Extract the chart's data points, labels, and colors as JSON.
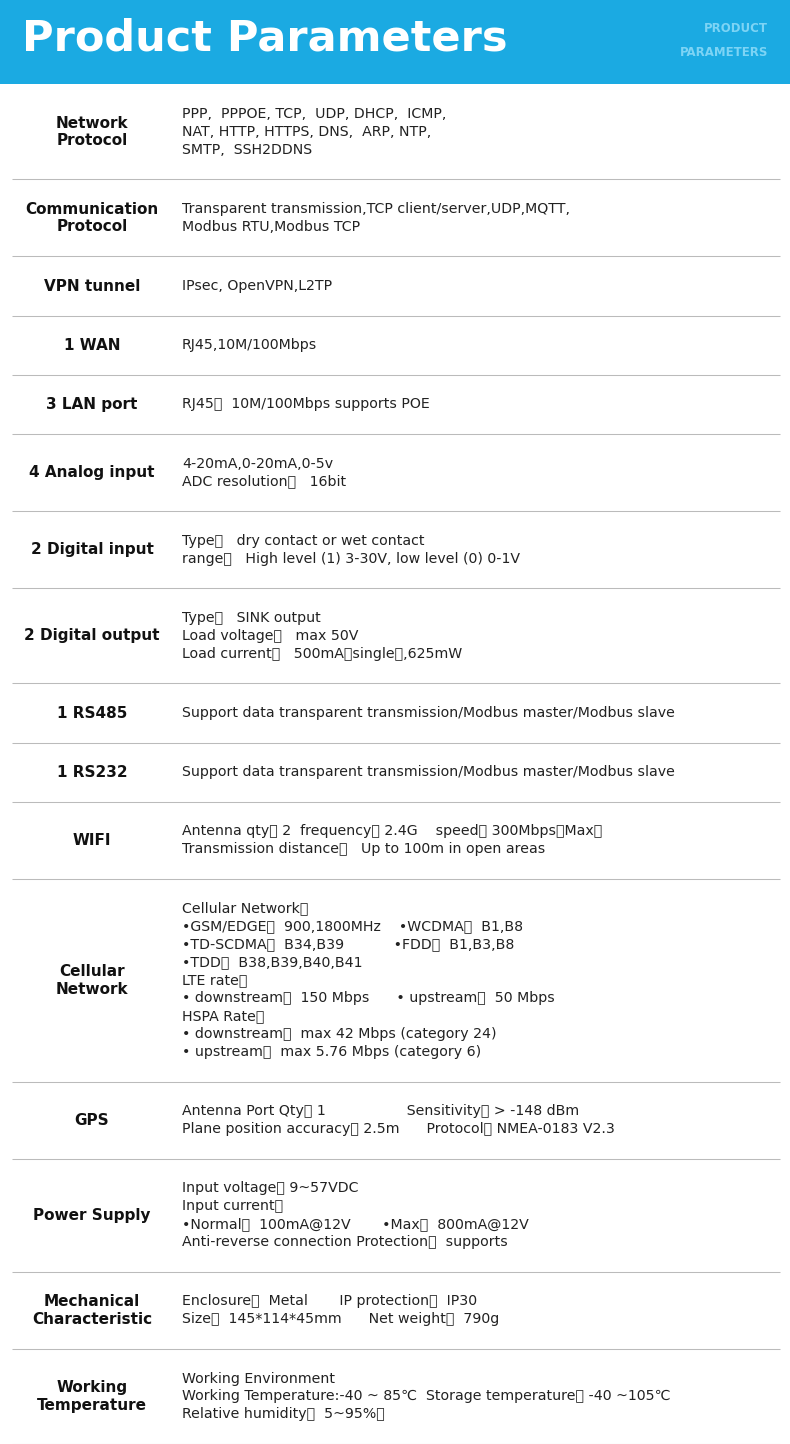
{
  "title": "Product Parameters",
  "header_bg": "#1BAAE2",
  "header_text_color": "#FFFFFF",
  "watermark_color": "#7DD4F5",
  "bg_color": "#FFFFFF",
  "line_color": "#BBBBBB",
  "label_color": "#111111",
  "value_color": "#222222",
  "rows": [
    {
      "label": "Network\nProtocol",
      "value": "PPP,  PPPOE, TCP,  UDP, DHCP,  ICMP,\nNAT, HTTP, HTTPS, DNS,  ARP, NTP,\nSMTP,  SSH2DDNS",
      "nlines": 3
    },
    {
      "label": "Communication\nProtocol",
      "value": "Transparent transmission,TCP client/server,UDP,MQTT,\nModbus RTU,Modbus TCP",
      "nlines": 2
    },
    {
      "label": "VPN tunnel",
      "value": "IPsec, OpenVPN,L2TP",
      "nlines": 1
    },
    {
      "label": "1 WAN",
      "value": "RJ45,10M/100Mbps",
      "nlines": 1
    },
    {
      "label": "3 LAN port",
      "value": "RJ45，  10M/100Mbps supports POE",
      "nlines": 1
    },
    {
      "label": "4 Analog input",
      "value": "4-20mA,0-20mA,0-5v\nADC resolution：   16bit",
      "nlines": 2
    },
    {
      "label": "2 Digital input",
      "value": "Type：   dry contact or wet contact\nrange：   High level (1) 3-30V, low level (0) 0-1V",
      "nlines": 2
    },
    {
      "label": "2 Digital output",
      "value": "Type：   SINK output\nLoad voltage：   max 50V\nLoad current：   500mA（single）,625mW",
      "nlines": 3
    },
    {
      "label": "1 RS485",
      "value": "Support data transparent transmission/Modbus master/Modbus slave",
      "nlines": 1
    },
    {
      "label": "1 RS232",
      "value": "Support data transparent transmission/Modbus master/Modbus slave",
      "nlines": 1
    },
    {
      "label": "WIFI",
      "value": "Antenna qty： 2  frequency： 2.4G    speed： 300Mbps（Max）\nTransmission distance：   Up to 100m in open areas",
      "nlines": 2
    },
    {
      "label": "Cellular\nNetwork",
      "value": "Cellular Network：\n•GSM/EDGE：  900,1800MHz    •WCDMA：  B1,B8\n•TD-SCDMA：  B34,B39           •FDD：  B1,B3,B8\n•TDD：  B38,B39,B40,B41\nLTE rate：\n• downstream：  150 Mbps      • upstream：  50 Mbps\nHSPA Rate：\n• downstream：  max 42 Mbps (category 24)\n• upstream：  max 5.76 Mbps (category 6)",
      "nlines": 9
    },
    {
      "label": "GPS",
      "value": "Antenna Port Qty： 1                  Sensitivity： > -148 dBm\nPlane position accuracy： 2.5m      Protocol： NMEA-0183 V2.3",
      "nlines": 2
    },
    {
      "label": "Power Supply",
      "value": "Input voltage： 9~57VDC\nInput current：\n•Normal：  100mA@12V       •Max：  800mA@12V\nAnti-reverse connection Protection：  supports",
      "nlines": 4
    },
    {
      "label": "Mechanical\nCharacteristic",
      "value": "Enclosure：  Metal       IP protection：  IP30\nSize：  145*114*45mm      Net weight：  790g",
      "nlines": 2
    },
    {
      "label": "Working\nTemperature",
      "value": "Working Environment\nWorking Temperature:-40 ~ 85℃  Storage temperature： -40 ~105℃\nRelative humidity：  5~95%（",
      "nlines": 3
    }
  ]
}
